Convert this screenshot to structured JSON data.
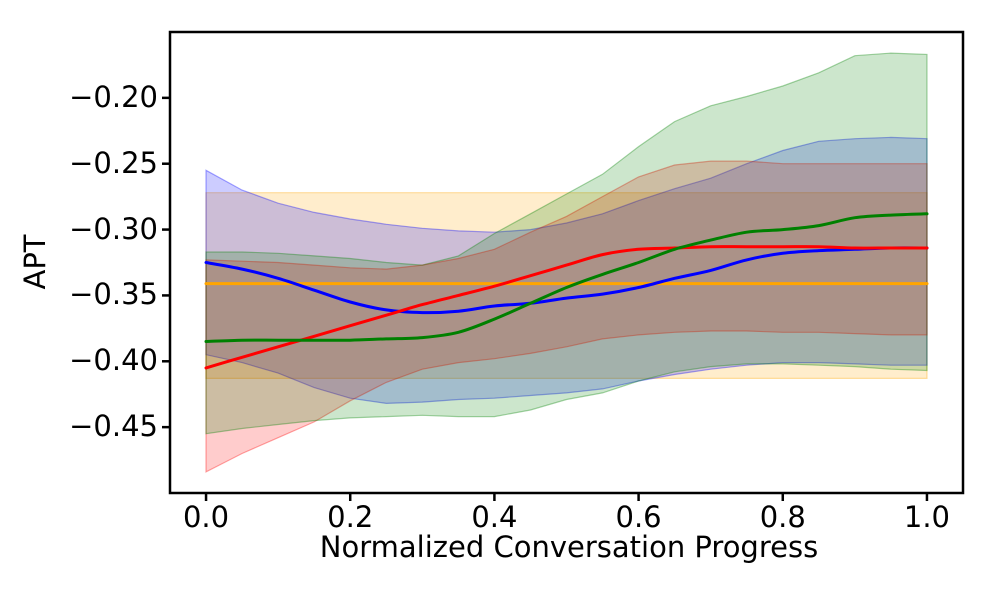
{
  "chart_data": {
    "type": "line",
    "title": "",
    "xlabel": "Normalized Conversation Progress",
    "ylabel": "APT",
    "xlim": [
      -0.05,
      1.05
    ],
    "ylim": [
      -0.5,
      -0.15
    ],
    "grid": false,
    "legend": "none",
    "band_alpha": 0.2,
    "xticks": {
      "values": [
        0.0,
        0.2,
        0.4,
        0.6,
        0.8,
        1.0
      ],
      "labels": [
        "0.0",
        "0.2",
        "0.4",
        "0.6",
        "0.8",
        "1.0"
      ]
    },
    "yticks": {
      "values": [
        -0.2,
        -0.25,
        -0.3,
        -0.35,
        -0.4,
        -0.45
      ],
      "labels": [
        "−0.20",
        "−0.25",
        "−0.30",
        "−0.35",
        "−0.40",
        "−0.45"
      ]
    },
    "x": [
      0.0,
      0.05,
      0.1,
      0.15,
      0.2,
      0.25,
      0.3,
      0.35,
      0.4,
      0.45,
      0.5,
      0.55,
      0.6,
      0.65,
      0.7,
      0.75,
      0.8,
      0.85,
      0.9,
      0.95,
      1.0
    ],
    "series": [
      {
        "name": "orange",
        "color": "#ffa500",
        "line": [
          -0.341,
          -0.341,
          -0.341,
          -0.341,
          -0.341,
          -0.341,
          -0.341,
          -0.341,
          -0.341,
          -0.341,
          -0.341,
          -0.341,
          -0.341,
          -0.341,
          -0.341,
          -0.341,
          -0.341,
          -0.341,
          -0.341,
          -0.341,
          -0.341
        ],
        "band_top": [
          -0.272,
          -0.272,
          -0.272,
          -0.272,
          -0.272,
          -0.272,
          -0.272,
          -0.272,
          -0.272,
          -0.272,
          -0.272,
          -0.272,
          -0.272,
          -0.272,
          -0.272,
          -0.272,
          -0.272,
          -0.272,
          -0.272,
          -0.272,
          -0.272
        ],
        "band_bottom": [
          -0.413,
          -0.413,
          -0.413,
          -0.413,
          -0.413,
          -0.413,
          -0.413,
          -0.413,
          -0.413,
          -0.413,
          -0.413,
          -0.413,
          -0.413,
          -0.413,
          -0.413,
          -0.413,
          -0.413,
          -0.413,
          -0.413,
          -0.413,
          -0.413
        ]
      },
      {
        "name": "blue",
        "color": "#0000ff",
        "line": [
          -0.325,
          -0.33,
          -0.337,
          -0.346,
          -0.355,
          -0.361,
          -0.363,
          -0.362,
          -0.358,
          -0.356,
          -0.352,
          -0.349,
          -0.344,
          -0.337,
          -0.331,
          -0.323,
          -0.318,
          -0.316,
          -0.315,
          -0.314,
          -0.314
        ],
        "band_top": [
          -0.255,
          -0.27,
          -0.28,
          -0.287,
          -0.292,
          -0.296,
          -0.299,
          -0.301,
          -0.302,
          -0.3,
          -0.295,
          -0.288,
          -0.278,
          -0.269,
          -0.261,
          -0.25,
          -0.24,
          -0.233,
          -0.231,
          -0.23,
          -0.231
        ],
        "band_bottom": [
          -0.395,
          -0.401,
          -0.409,
          -0.42,
          -0.428,
          -0.432,
          -0.431,
          -0.429,
          -0.428,
          -0.426,
          -0.424,
          -0.421,
          -0.415,
          -0.41,
          -0.406,
          -0.403,
          -0.401,
          -0.401,
          -0.402,
          -0.403,
          -0.403
        ]
      },
      {
        "name": "red",
        "color": "#ff0000",
        "line": [
          -0.405,
          -0.397,
          -0.389,
          -0.381,
          -0.373,
          -0.365,
          -0.357,
          -0.35,
          -0.343,
          -0.335,
          -0.327,
          -0.319,
          -0.315,
          -0.314,
          -0.313,
          -0.313,
          -0.313,
          -0.313,
          -0.314,
          -0.314,
          -0.314
        ],
        "band_top": [
          -0.323,
          -0.324,
          -0.325,
          -0.327,
          -0.329,
          -0.33,
          -0.327,
          -0.322,
          -0.315,
          -0.302,
          -0.29,
          -0.275,
          -0.26,
          -0.251,
          -0.248,
          -0.248,
          -0.25,
          -0.25,
          -0.25,
          -0.25,
          -0.25
        ],
        "band_bottom": [
          -0.484,
          -0.47,
          -0.458,
          -0.446,
          -0.43,
          -0.416,
          -0.406,
          -0.401,
          -0.398,
          -0.394,
          -0.389,
          -0.383,
          -0.38,
          -0.378,
          -0.377,
          -0.377,
          -0.378,
          -0.378,
          -0.379,
          -0.38,
          -0.38
        ]
      },
      {
        "name": "green",
        "color": "#008000",
        "line": [
          -0.385,
          -0.384,
          -0.384,
          -0.384,
          -0.384,
          -0.383,
          -0.382,
          -0.378,
          -0.368,
          -0.356,
          -0.344,
          -0.334,
          -0.325,
          -0.315,
          -0.308,
          -0.302,
          -0.3,
          -0.297,
          -0.291,
          -0.289,
          -0.288
        ],
        "band_top": [
          -0.317,
          -0.317,
          -0.318,
          -0.32,
          -0.322,
          -0.325,
          -0.327,
          -0.32,
          -0.303,
          -0.288,
          -0.273,
          -0.258,
          -0.237,
          -0.218,
          -0.206,
          -0.199,
          -0.191,
          -0.181,
          -0.168,
          -0.166,
          -0.167
        ],
        "band_bottom": [
          -0.455,
          -0.451,
          -0.448,
          -0.445,
          -0.443,
          -0.442,
          -0.441,
          -0.442,
          -0.442,
          -0.437,
          -0.429,
          -0.424,
          -0.415,
          -0.408,
          -0.404,
          -0.402,
          -0.402,
          -0.403,
          -0.404,
          -0.406,
          -0.407
        ]
      }
    ]
  }
}
